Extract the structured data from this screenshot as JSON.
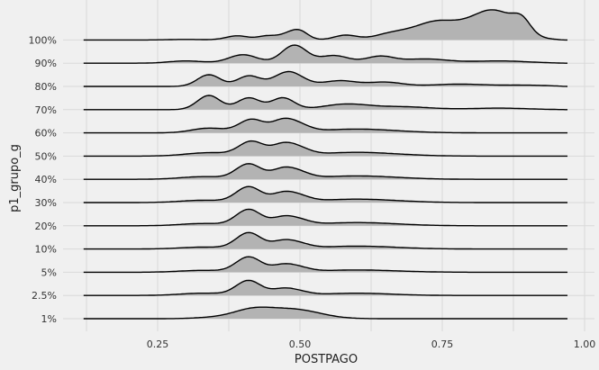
{
  "chart_data": {
    "type": "ridgeline",
    "xlabel": "POSTPAGO",
    "ylabel": "p1_grupo_g",
    "xlim": [
      0.12,
      1.0
    ],
    "xticks": [
      0.25,
      0.5,
      0.75,
      1.0
    ],
    "xtick_labels": [
      "0.25",
      "0.50",
      "0.75",
      "1.00"
    ],
    "grid": true,
    "fill_color": "#b3b3b3",
    "line_color": "#000000",
    "background": "#f0f0f0",
    "categories": [
      "1%",
      "2.5%",
      "5%",
      "10%",
      "20%",
      "30%",
      "40%",
      "50%",
      "60%",
      "70%",
      "80%",
      "90%",
      "100%"
    ],
    "series": [
      {
        "category": "1%",
        "range": [
          0.12,
          0.97
        ],
        "peaks": [
          [
            0.415,
            0.45,
            0.035
          ],
          [
            0.49,
            0.48,
            0.045
          ],
          [
            0.34,
            0.05,
            0.03
          ]
        ]
      },
      {
        "category": "2.5%",
        "range": [
          0.12,
          0.97
        ],
        "peaks": [
          [
            0.41,
            0.78,
            0.022
          ],
          [
            0.47,
            0.32,
            0.02
          ],
          [
            0.5,
            0.15,
            0.02
          ],
          [
            0.6,
            0.12,
            0.06
          ],
          [
            0.33,
            0.12,
            0.04
          ]
        ]
      },
      {
        "category": "5%",
        "range": [
          0.12,
          0.97
        ],
        "peaks": [
          [
            0.41,
            0.8,
            0.022
          ],
          [
            0.47,
            0.35,
            0.02
          ],
          [
            0.5,
            0.18,
            0.02
          ],
          [
            0.6,
            0.12,
            0.07
          ],
          [
            0.33,
            0.1,
            0.04
          ]
        ]
      },
      {
        "category": "10%",
        "range": [
          0.12,
          0.97
        ],
        "peaks": [
          [
            0.41,
            0.85,
            0.022
          ],
          [
            0.47,
            0.38,
            0.02
          ],
          [
            0.5,
            0.2,
            0.02
          ],
          [
            0.6,
            0.15,
            0.07
          ],
          [
            0.33,
            0.1,
            0.04
          ]
        ]
      },
      {
        "category": "20%",
        "range": [
          0.12,
          0.97
        ],
        "peaks": [
          [
            0.41,
            0.85,
            0.022
          ],
          [
            0.47,
            0.4,
            0.02
          ],
          [
            0.5,
            0.22,
            0.02
          ],
          [
            0.6,
            0.17,
            0.07
          ],
          [
            0.33,
            0.12,
            0.04
          ]
        ]
      },
      {
        "category": "30%",
        "range": [
          0.12,
          0.97
        ],
        "peaks": [
          [
            0.41,
            0.82,
            0.022
          ],
          [
            0.47,
            0.45,
            0.02
          ],
          [
            0.5,
            0.25,
            0.02
          ],
          [
            0.6,
            0.18,
            0.07
          ],
          [
            0.33,
            0.12,
            0.04
          ]
        ]
      },
      {
        "category": "40%",
        "range": [
          0.12,
          0.97
        ],
        "peaks": [
          [
            0.41,
            0.8,
            0.022
          ],
          [
            0.47,
            0.5,
            0.02
          ],
          [
            0.5,
            0.27,
            0.02
          ],
          [
            0.6,
            0.18,
            0.07
          ],
          [
            0.33,
            0.14,
            0.04
          ]
        ]
      },
      {
        "category": "50%",
        "range": [
          0.12,
          0.97
        ],
        "peaks": [
          [
            0.415,
            0.75,
            0.022
          ],
          [
            0.47,
            0.55,
            0.02
          ],
          [
            0.5,
            0.3,
            0.02
          ],
          [
            0.6,
            0.2,
            0.07
          ],
          [
            0.34,
            0.18,
            0.04
          ]
        ]
      },
      {
        "category": "60%",
        "range": [
          0.12,
          0.97
        ],
        "peaks": [
          [
            0.415,
            0.7,
            0.022
          ],
          [
            0.47,
            0.6,
            0.02
          ],
          [
            0.5,
            0.3,
            0.02
          ],
          [
            0.6,
            0.2,
            0.07
          ],
          [
            0.34,
            0.25,
            0.03
          ]
        ]
      },
      {
        "category": "70%",
        "range": [
          0.12,
          0.97
        ],
        "peaks": [
          [
            0.34,
            0.75,
            0.02
          ],
          [
            0.41,
            0.62,
            0.02
          ],
          [
            0.47,
            0.62,
            0.02
          ],
          [
            0.58,
            0.28,
            0.04
          ],
          [
            0.68,
            0.15,
            0.05
          ],
          [
            0.85,
            0.08,
            0.05
          ]
        ]
      },
      {
        "category": "80%",
        "range": [
          0.12,
          0.97
        ],
        "peaks": [
          [
            0.34,
            0.62,
            0.02
          ],
          [
            0.41,
            0.55,
            0.02
          ],
          [
            0.48,
            0.78,
            0.025
          ],
          [
            0.57,
            0.3,
            0.03
          ],
          [
            0.65,
            0.22,
            0.03
          ],
          [
            0.78,
            0.12,
            0.05
          ],
          [
            0.9,
            0.06,
            0.04
          ]
        ]
      },
      {
        "category": "90%",
        "range": [
          0.12,
          0.97
        ],
        "peaks": [
          [
            0.3,
            0.12,
            0.03
          ],
          [
            0.4,
            0.45,
            0.025
          ],
          [
            0.49,
            0.95,
            0.022
          ],
          [
            0.56,
            0.4,
            0.025
          ],
          [
            0.64,
            0.35,
            0.025
          ],
          [
            0.72,
            0.22,
            0.04
          ],
          [
            0.85,
            0.12,
            0.05
          ]
        ]
      },
      {
        "category": "100%",
        "range": [
          0.12,
          0.97
        ],
        "peaks": [
          [
            0.3,
            0.03,
            0.03
          ],
          [
            0.39,
            0.22,
            0.02
          ],
          [
            0.44,
            0.18,
            0.015
          ],
          [
            0.48,
            0.3,
            0.02
          ],
          [
            0.5,
            0.35,
            0.015
          ],
          [
            0.58,
            0.25,
            0.02
          ],
          [
            0.66,
            0.3,
            0.03
          ],
          [
            0.74,
            0.95,
            0.04
          ],
          [
            0.84,
            1.55,
            0.04
          ],
          [
            0.89,
            0.6,
            0.015
          ]
        ]
      }
    ]
  }
}
